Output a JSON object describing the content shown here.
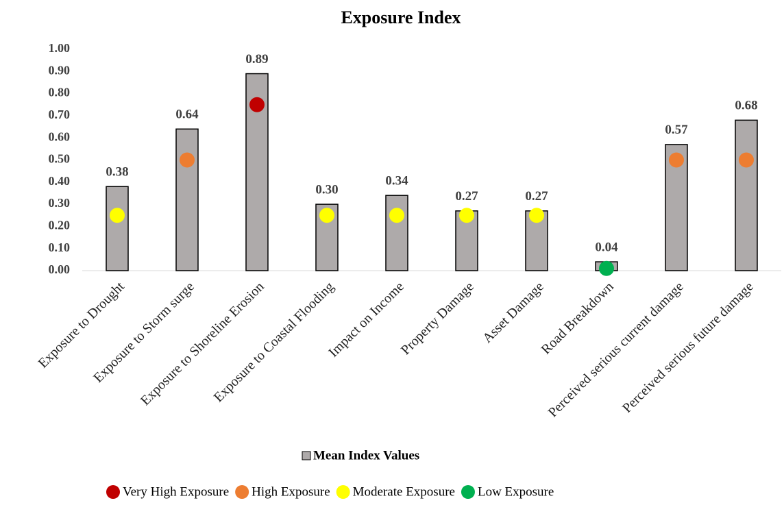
{
  "chart_data": {
    "type": "bar",
    "title": "Exposure Index",
    "categories": [
      "Exposure to Drought",
      "Exposure to Storm surge",
      "Exposure to Shoreline Erosion",
      "Exposure to Coastal Flooding",
      "Impact on Income",
      "Property Damage",
      "Asset Damage",
      "Road Breakdown",
      "Perceived serious current damage",
      "Perceived serious future damage"
    ],
    "series": [
      {
        "name": "Mean Index Values",
        "color": "#aeaaaa",
        "values": [
          0.38,
          0.64,
          0.89,
          0.3,
          0.34,
          0.27,
          0.27,
          0.04,
          0.57,
          0.68
        ],
        "value_labels": [
          "0.38",
          "0.64",
          "0.89",
          "0.30",
          "0.34",
          "0.27",
          "0.27",
          "0.04",
          "0.57",
          "0.68"
        ]
      }
    ],
    "exposure_levels": [
      {
        "name": "Very High Exposure",
        "color": "#c00000",
        "values": [
          null,
          null,
          0.75,
          null,
          null,
          null,
          null,
          null,
          null,
          null
        ]
      },
      {
        "name": "High Exposure",
        "color": "#ed7d31",
        "values": [
          null,
          0.5,
          null,
          null,
          null,
          null,
          null,
          null,
          0.5,
          0.5
        ]
      },
      {
        "name": "Moderate Exposure",
        "color": "#ffff00",
        "values": [
          0.25,
          null,
          null,
          0.25,
          0.25,
          0.25,
          0.25,
          null,
          null,
          null
        ]
      },
      {
        "name": "Low Exposure",
        "color": "#00b050",
        "values": [
          null,
          null,
          null,
          null,
          null,
          null,
          null,
          0.01,
          null,
          null
        ]
      }
    ],
    "ylim": [
      0,
      1
    ],
    "yticks": [
      {
        "value": 0,
        "label": "0.00"
      },
      {
        "value": 0.1,
        "label": "0.10"
      },
      {
        "value": 0.2,
        "label": "0.20"
      },
      {
        "value": 0.3,
        "label": "0.30"
      },
      {
        "value": 0.4,
        "label": "0.40"
      },
      {
        "value": 0.5,
        "label": "0.50"
      },
      {
        "value": 0.6,
        "label": "0.60"
      },
      {
        "value": 0.7,
        "label": "0.70"
      },
      {
        "value": 0.8,
        "label": "0.80"
      },
      {
        "value": 0.9,
        "label": "0.90"
      },
      {
        "value": 1,
        "label": "1.00"
      }
    ]
  }
}
